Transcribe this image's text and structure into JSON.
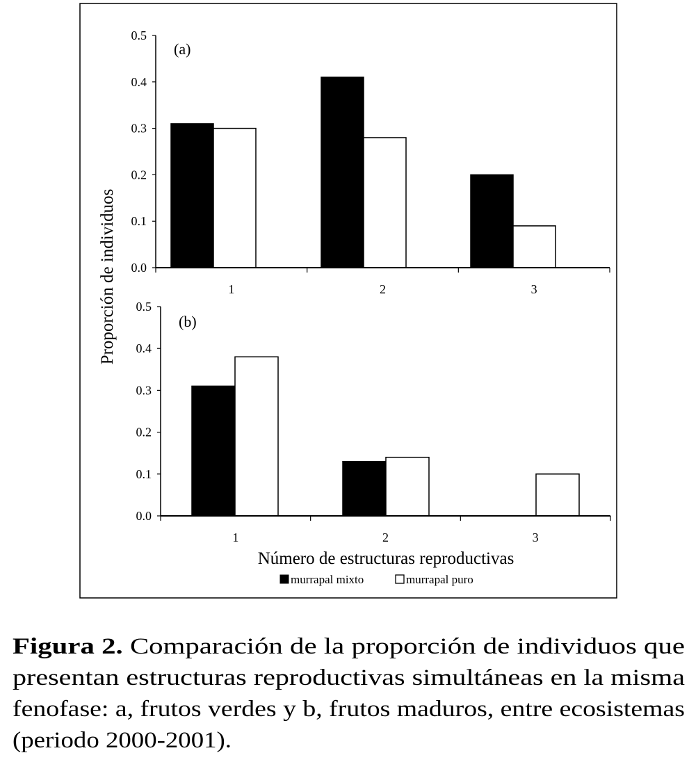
{
  "chart_data": [
    {
      "type": "bar",
      "panel_label": "(a)",
      "categories": [
        "1",
        "2",
        "3"
      ],
      "series": [
        {
          "name": "murrapal mixto",
          "color": "#000000",
          "values": [
            0.31,
            0.41,
            0.2
          ]
        },
        {
          "name": "murrapal puro",
          "color": "#ffffff",
          "values": [
            0.3,
            0.28,
            0.09
          ]
        }
      ],
      "ylim": [
        0,
        0.5
      ],
      "yticks": [
        "0.0",
        "0.1",
        "0.2",
        "0.3",
        "0.4",
        "0.5"
      ],
      "grid": false
    },
    {
      "type": "bar",
      "panel_label": "(b)",
      "categories": [
        "1",
        "2",
        "3"
      ],
      "series": [
        {
          "name": "murrapal mixto",
          "color": "#000000",
          "values": [
            0.31,
            0.13,
            0.0
          ]
        },
        {
          "name": "murrapal puro",
          "color": "#ffffff",
          "values": [
            0.38,
            0.14,
            0.1
          ]
        }
      ],
      "ylim": [
        0,
        0.5
      ],
      "yticks": [
        "0.0",
        "0.1",
        "0.2",
        "0.3",
        "0.4",
        "0.5"
      ],
      "grid": false
    }
  ],
  "ylabel": "Proporción de individuos",
  "xlabel": "Número de estructuras reproductivas",
  "legend": {
    "placement": "bottom",
    "items": [
      {
        "label": "murrapal mixto",
        "color": "#000000"
      },
      {
        "label": "murrapal puro",
        "color": "#ffffff"
      }
    ]
  },
  "caption": {
    "bold": "Figura 2.",
    "lines": [
      " Comparación de la proporción de individuos que",
      "presentan estructuras reproductivas simultáneas en la misma",
      "fenofase: a, frutos verdes y b, frutos maduros, entre ecosistemas",
      "(periodo 2000-2001)."
    ]
  }
}
